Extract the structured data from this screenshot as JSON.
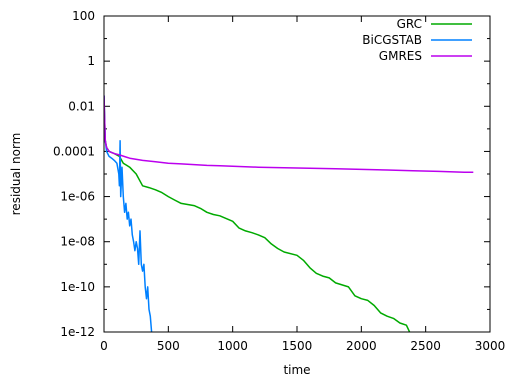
{
  "chart_data": {
    "type": "line",
    "title": "",
    "xlabel": "time",
    "ylabel": "residual norm",
    "xlim": [
      0,
      3000
    ],
    "ylim": [
      1e-12,
      100
    ],
    "yscale": "log",
    "grid": false,
    "legend_position": "top-right",
    "x_ticks": [
      0,
      500,
      1000,
      1500,
      2000,
      2500,
      3000
    ],
    "x_tick_labels": [
      "0",
      "500",
      "1000",
      "1500",
      "2000",
      "2500",
      "3000"
    ],
    "y_ticks": [
      100,
      1,
      0.01,
      0.0001,
      1e-06,
      1e-08,
      1e-10,
      1e-12
    ],
    "y_tick_labels": [
      "100",
      "1",
      "0.01",
      "0.0001",
      "1e-06",
      "1e-08",
      "1e-10",
      "1e-12"
    ],
    "series": [
      {
        "name": "GRC",
        "color": "#00aa00",
        "x": [
          0,
          5,
          10,
          20,
          40,
          80,
          120,
          150,
          200,
          250,
          300,
          350,
          400,
          450,
          500,
          550,
          600,
          700,
          750,
          800,
          850,
          900,
          1000,
          1050,
          1100,
          1150,
          1200,
          1250,
          1300,
          1350,
          1400,
          1500,
          1550,
          1600,
          1650,
          1700,
          1750,
          1800,
          1900,
          1950,
          2000,
          2050,
          2100,
          2150,
          2200,
          2250,
          2300,
          2350,
          2400,
          2450,
          2500
        ],
        "y": [
          0.03,
          0.003,
          0.0003,
          0.00015,
          0.0001,
          8e-05,
          6e-05,
          3e-05,
          2e-05,
          1e-05,
          3e-06,
          2.5e-06,
          2e-06,
          1.5e-06,
          1e-06,
          7e-07,
          5e-07,
          4e-07,
          3e-07,
          2e-07,
          1.6e-07,
          1.4e-07,
          8e-08,
          4e-08,
          3e-08,
          2.5e-08,
          2e-08,
          1.5e-08,
          8e-09,
          5e-09,
          3.5e-09,
          2.5e-09,
          1.5e-09,
          7e-10,
          4e-10,
          3e-10,
          2.5e-10,
          1.5e-10,
          1e-10,
          4e-11,
          3e-11,
          2.5e-11,
          1.5e-11,
          7e-12,
          5e-12,
          4e-12,
          2.5e-12,
          2e-12,
          5e-13,
          4e-13,
          3e-13
        ]
      },
      {
        "name": "BiCGSTAB",
        "color": "#0080ff",
        "x": [
          0,
          5,
          10,
          20,
          40,
          60,
          80,
          100,
          115,
          120,
          125,
          130,
          140,
          150,
          160,
          170,
          180,
          190,
          200,
          210,
          220,
          230,
          240,
          250,
          260,
          270,
          280,
          290,
          300,
          310,
          320,
          330,
          340,
          350,
          360,
          370,
          380
        ],
        "y": [
          0.03,
          0.002,
          0.0003,
          0.0001,
          6e-05,
          5e-05,
          4e-05,
          3e-05,
          1e-05,
          3e-06,
          0.0003,
          1e-06,
          2e-05,
          1e-06,
          2e-07,
          5e-07,
          1e-07,
          2e-07,
          5e-08,
          1e-07,
          2e-08,
          1e-08,
          4e-09,
          1e-08,
          5e-09,
          1e-09,
          3e-08,
          1e-09,
          5e-10,
          1e-09,
          1e-10,
          3e-11,
          1e-10,
          1e-11,
          5e-12,
          1e-12,
          5e-13
        ]
      },
      {
        "name": "GMRES",
        "color": "#bb00ee",
        "x": [
          0,
          5,
          10,
          20,
          40,
          80,
          120,
          200,
          300,
          400,
          500,
          600,
          700,
          800,
          900,
          1000,
          1200,
          1400,
          1600,
          1800,
          2000,
          2200,
          2400,
          2600,
          2800,
          2870
        ],
        "y": [
          0.03,
          0.003,
          0.0003,
          0.00015,
          0.0001,
          8e-05,
          7e-05,
          5e-05,
          4e-05,
          3.5e-05,
          3e-05,
          2.8e-05,
          2.6e-05,
          2.4e-05,
          2.3e-05,
          2.2e-05,
          2e-05,
          1.9e-05,
          1.8e-05,
          1.7e-05,
          1.6e-05,
          1.5e-05,
          1.4e-05,
          1.3e-05,
          1.2e-05,
          1.2e-05
        ]
      }
    ]
  }
}
